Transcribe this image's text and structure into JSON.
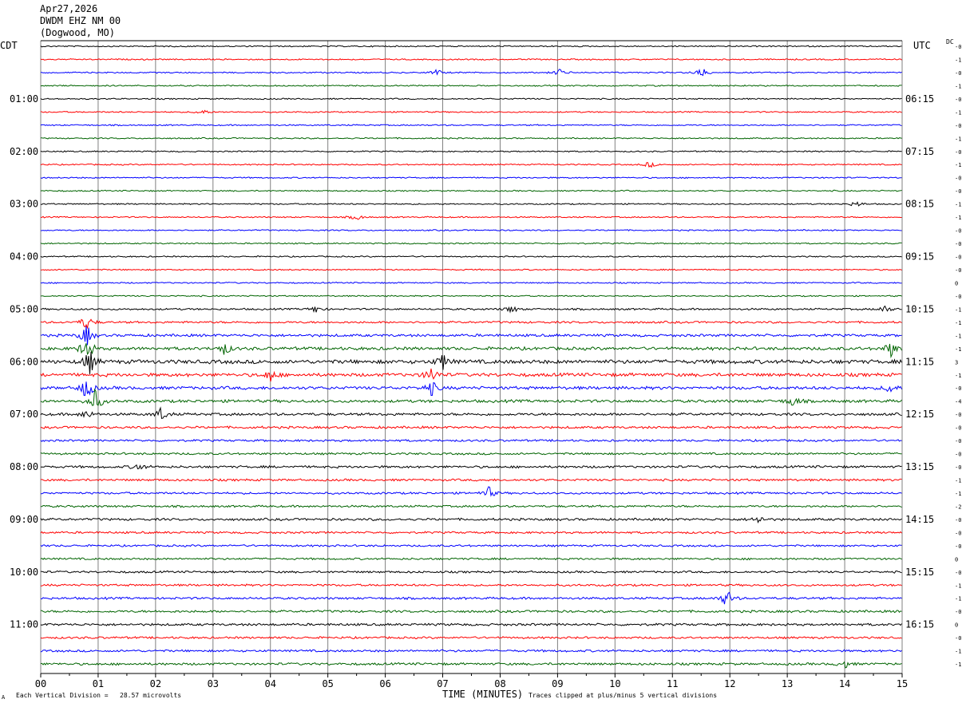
{
  "header": {
    "date": "Apr27,2026",
    "station": "DWDM EHZ NM 00",
    "location": "(Dogwood, MO)"
  },
  "labels": {
    "left_zone": "CDT",
    "right_zone": "UTC",
    "dc_label": "DC",
    "x_axis_title": "TIME (MINUTES)",
    "footer_left": "Each Vertical Division =   28.57 microvolts",
    "footer_right": "Traces clipped at plus/minus 5 vertical divisions",
    "footer_mark": "A"
  },
  "colors": {
    "trace_cycle": [
      "#000000",
      "#ff0000",
      "#0000ff",
      "#006400"
    ],
    "grid": "#808080",
    "frame": "#000000"
  },
  "chart_data": {
    "type": "line",
    "chart_kind": "helicorder",
    "x_axis": {
      "label": "TIME (MINUTES)",
      "range": [
        0,
        15
      ],
      "ticks": [
        "00",
        "01",
        "02",
        "03",
        "04",
        "05",
        "06",
        "07",
        "08",
        "09",
        "10",
        "11",
        "12",
        "13",
        "14",
        "15"
      ]
    },
    "rows_per_hour": 4,
    "minutes_per_row": 15,
    "row_count": 48,
    "left_time_labels": [
      "01:00",
      "02:00",
      "03:00",
      "04:00",
      "05:00",
      "06:00",
      "07:00",
      "08:00",
      "09:00",
      "10:00",
      "11:00"
    ],
    "right_time_labels": [
      "06:15",
      "07:15",
      "08:15",
      "09:15",
      "10:15",
      "11:15",
      "12:15",
      "13:15",
      "14:15",
      "15:15",
      "16:15"
    ],
    "dc_offsets": [
      "-0",
      "-1",
      "-0",
      "-1",
      "-0",
      "-1",
      "-0",
      "-1",
      "-0",
      "-1",
      "-0",
      "-0",
      "-1",
      "-1",
      "-0",
      "-0",
      "-0",
      "-0",
      "0",
      "-0",
      "-1",
      "-1",
      "-1",
      "-1",
      "3",
      "-1",
      "-0",
      "-4",
      "-0",
      "-0",
      "-0",
      "-0",
      "-0",
      "-1",
      "-1",
      "-2",
      "-0",
      "-0",
      "-0",
      "0",
      "-0",
      "-1",
      "-1",
      "-0",
      "0",
      "-0",
      "-1",
      "-1"
    ],
    "amplitude_profile": [
      1,
      1,
      1,
      1,
      1,
      1,
      1,
      1,
      1,
      1,
      1,
      1,
      1,
      1,
      1,
      1,
      1,
      1,
      1,
      1,
      1.4,
      1.6,
      2,
      2.4,
      3,
      2.6,
      2.4,
      2.2,
      2,
      1.8,
      1.6,
      1.6,
      1.8,
      1.7,
      1.6,
      1.6,
      1.8,
      1.6,
      1.5,
      1.5,
      1.6,
      1.6,
      1.7,
      1.8,
      1.8,
      1.6,
      1.7,
      1.8
    ],
    "events": [
      {
        "row": 2,
        "minute": 11.5,
        "amplitude": 8
      },
      {
        "row": 2,
        "minute": 9.05,
        "amplitude": 5
      },
      {
        "row": 2,
        "minute": 6.9,
        "amplitude": 4
      },
      {
        "row": 5,
        "minute": 2.8,
        "amplitude": 4
      },
      {
        "row": 9,
        "minute": 10.6,
        "amplitude": 4
      },
      {
        "row": 12,
        "minute": 14.2,
        "amplitude": 4
      },
      {
        "row": 13,
        "minute": 5.5,
        "amplitude": 4
      },
      {
        "row": 20,
        "minute": 4.8,
        "amplitude": 5
      },
      {
        "row": 20,
        "minute": 8.2,
        "amplitude": 5
      },
      {
        "row": 20,
        "minute": 14.7,
        "amplitude": 5
      },
      {
        "row": 21,
        "minute": 0.8,
        "amplitude": 10
      },
      {
        "row": 22,
        "minute": 0.8,
        "amplitude": 14
      },
      {
        "row": 23,
        "minute": 0.8,
        "amplitude": 16
      },
      {
        "row": 23,
        "minute": 3.2,
        "amplitude": 8
      },
      {
        "row": 23,
        "minute": 14.8,
        "amplitude": 10
      },
      {
        "row": 24,
        "minute": 0.85,
        "amplitude": 16
      },
      {
        "row": 24,
        "minute": 7.0,
        "amplitude": 10
      },
      {
        "row": 25,
        "minute": 6.8,
        "amplitude": 10
      },
      {
        "row": 25,
        "minute": 4.0,
        "amplitude": 8
      },
      {
        "row": 26,
        "minute": 0.8,
        "amplitude": 16
      },
      {
        "row": 26,
        "minute": 6.8,
        "amplitude": 10
      },
      {
        "row": 26,
        "minute": 14.8,
        "amplitude": 7
      },
      {
        "row": 27,
        "minute": 0.95,
        "amplitude": 16
      },
      {
        "row": 27,
        "minute": 13.1,
        "amplitude": 7
      },
      {
        "row": 28,
        "minute": 2.1,
        "amplitude": 9
      },
      {
        "row": 28,
        "minute": 0.8,
        "amplitude": 6
      },
      {
        "row": 32,
        "minute": 1.7,
        "amplitude": 5
      },
      {
        "row": 34,
        "minute": 7.8,
        "amplitude": 8
      },
      {
        "row": 36,
        "minute": 12.5,
        "amplitude": 5
      },
      {
        "row": 42,
        "minute": 11.95,
        "amplitude": 12
      },
      {
        "row": 47,
        "minute": 14.0,
        "amplitude": 5
      }
    ]
  }
}
